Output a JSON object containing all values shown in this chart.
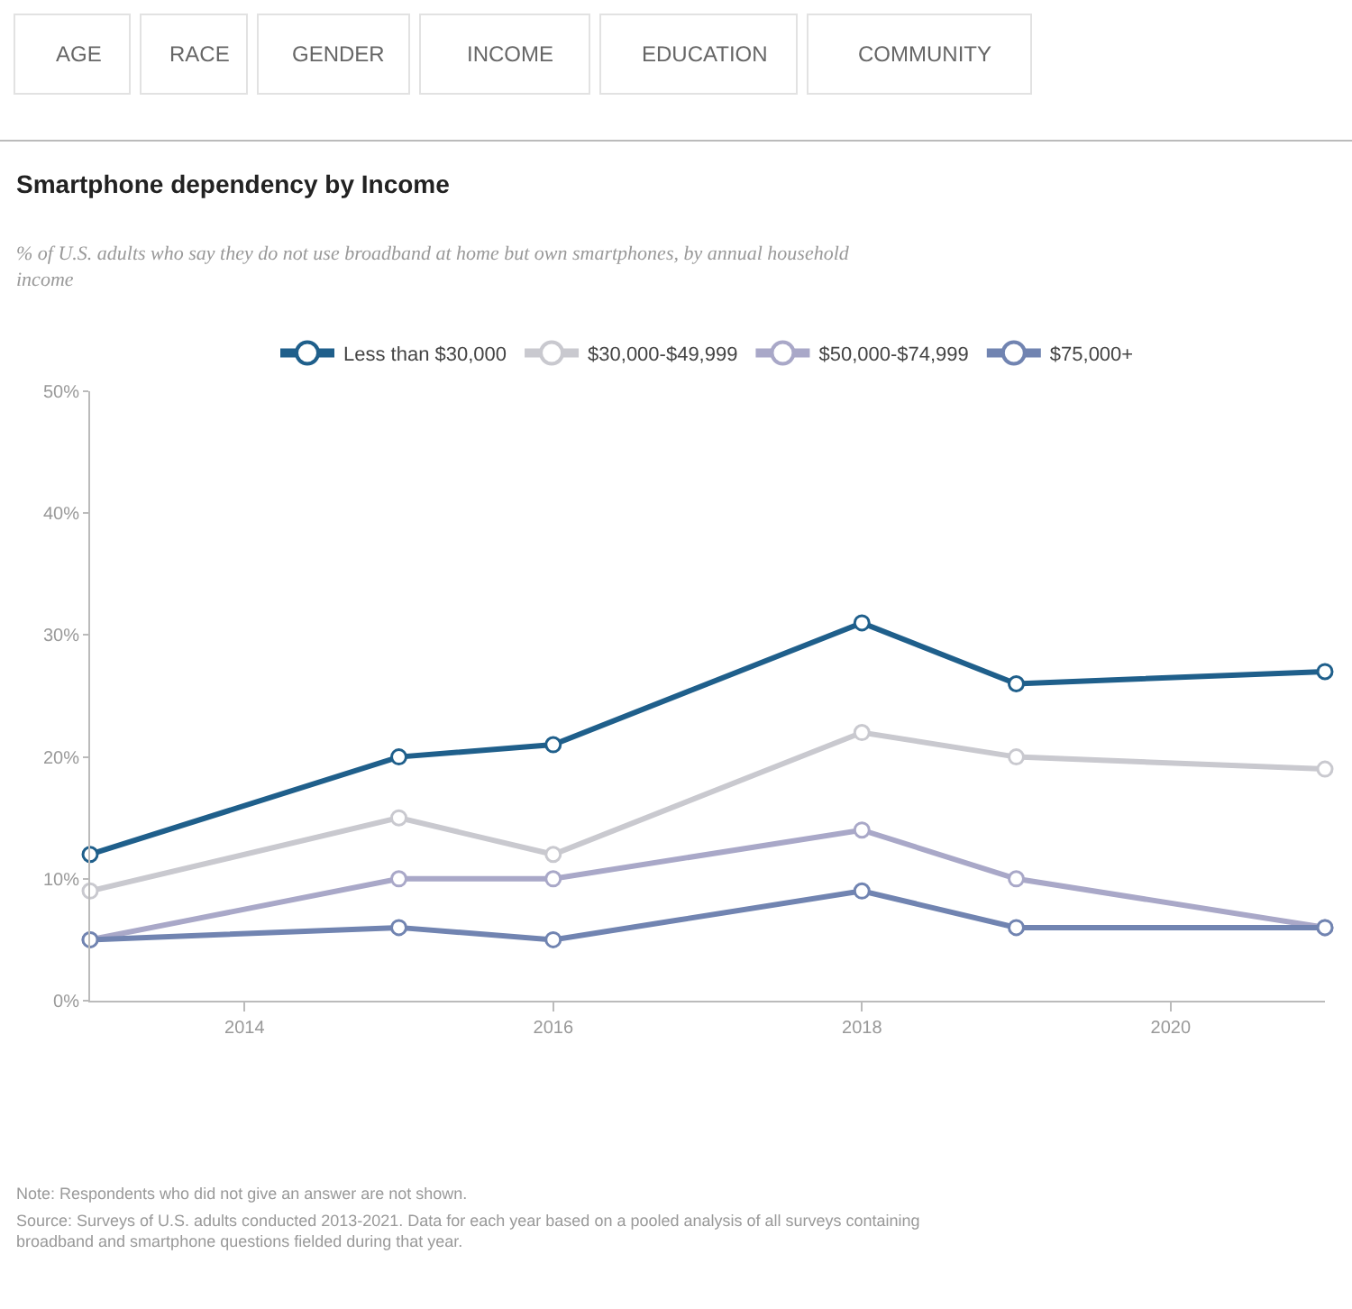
{
  "chart_data": {
    "type": "line",
    "title": "Smartphone dependency by Income",
    "subtitle": "% of U.S. adults who say they do not use broadband at home but own smartphones, by annual household income",
    "x": [
      2013,
      2015,
      2016,
      2018,
      2019,
      2021
    ],
    "series": [
      {
        "name": "Less than $30,000",
        "color": "#1f5f8b",
        "values": [
          12,
          20,
          21,
          31,
          26,
          27
        ]
      },
      {
        "name": "$30,000-$49,999",
        "color": "#c9c9cf",
        "values": [
          9,
          15,
          12,
          22,
          20,
          19
        ]
      },
      {
        "name": "$50,000-$74,999",
        "color": "#a9a8c8",
        "values": [
          5,
          10,
          10,
          14,
          10,
          6
        ]
      },
      {
        "name": "$75,000+",
        "color": "#7184b1",
        "values": [
          5,
          6,
          5,
          9,
          6,
          6
        ]
      }
    ],
    "xlim": [
      2013,
      2021
    ],
    "xticks": [
      2014,
      2016,
      2018,
      2020
    ],
    "ylim": [
      0,
      50
    ],
    "yticks": [
      {
        "value": 0,
        "label": "0%"
      },
      {
        "value": 10,
        "label": "10%"
      },
      {
        "value": 20,
        "label": "20%"
      },
      {
        "value": 30,
        "label": "30%"
      },
      {
        "value": 40,
        "label": "40%"
      },
      {
        "value": 50,
        "label": "50%"
      }
    ],
    "legend": "top",
    "marker": "circle",
    "line_style": "solid",
    "annotations": [
      "AGE",
      "RACE",
      "GENDER",
      "INCOME",
      "EDUCATION",
      "COMMUNITY",
      "Note: Respondents who did not give an answer are not shown.",
      "Source: Surveys of U.S. adults conducted 2013-2021. Data for each year based on a pooled analysis of all surveys containing broadband and smartphone questions fielded during that year."
    ]
  }
}
